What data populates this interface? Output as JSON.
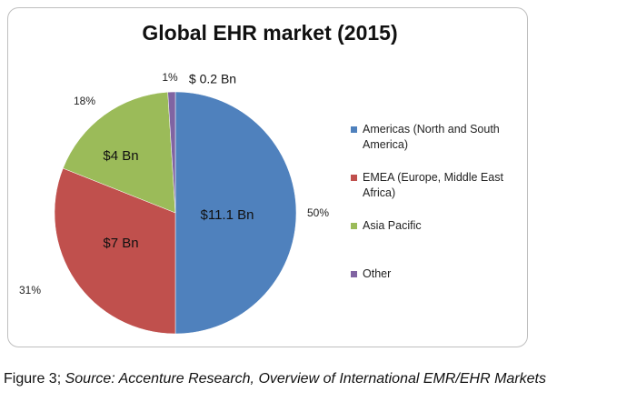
{
  "chart_data": {
    "type": "pie",
    "title": "Global EHR market (2015)",
    "categories": [
      "Americas (North and South America)",
      "EMEA (Europe, Middle East Africa)",
      "Asia Pacific",
      "Other"
    ],
    "values": [
      50,
      31,
      18,
      1
    ],
    "value_labels": [
      "50%",
      "31%",
      "18%",
      "1%"
    ],
    "amounts": [
      11.1,
      7,
      4,
      0.2
    ],
    "amount_labels": [
      "$11.1 Bn",
      "$7 Bn",
      "$4 Bn",
      "$ 0.2 Bn"
    ],
    "colors": [
      "#4f81bd",
      "#c0504d",
      "#9bbb59",
      "#8064a2"
    ],
    "legend": "right"
  },
  "caption": {
    "prefix": "Figure 3;",
    "source": "Source: Accenture Research, Overview of International EMR/EHR Markets"
  }
}
